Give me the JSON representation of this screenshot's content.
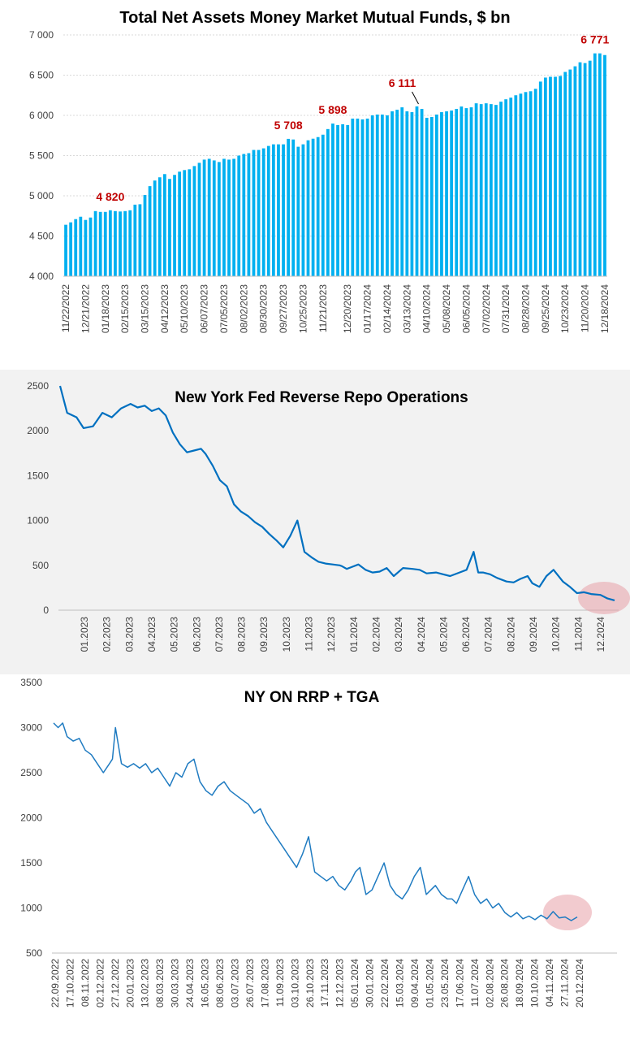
{
  "chart_data": [
    {
      "type": "bar",
      "title": "Total Net Assets Money Market Mutual Funds, $ bn",
      "ylim": [
        4000,
        7000
      ],
      "yticks": [
        "4 000",
        "4 500",
        "5 000",
        "5 500",
        "6 000",
        "6 500",
        "7 000"
      ],
      "grid": true,
      "color": "#00b0f0",
      "x_tick_labels": [
        "11/22/2022",
        "12/21/2022",
        "01/18/2023",
        "02/15/2023",
        "03/15/2023",
        "04/12/2023",
        "05/10/2023",
        "06/07/2023",
        "07/05/2023",
        "08/02/2023",
        "08/30/2023",
        "09/27/2023",
        "10/25/2023",
        "11/21/2023",
        "12/20/2023",
        "01/17/2024",
        "02/14/2024",
        "03/13/2024",
        "04/10/2024",
        "05/08/2024",
        "06/05/2024",
        "07/02/2024",
        "07/31/2024",
        "08/28/2024",
        "09/25/2024",
        "10/23/2024",
        "11/20/2024",
        "12/18/2024"
      ],
      "values": [
        4640,
        4670,
        4710,
        4740,
        4700,
        4730,
        4810,
        4800,
        4800,
        4820,
        4810,
        4805,
        4810,
        4820,
        4890,
        4895,
        5010,
        5120,
        5190,
        5230,
        5270,
        5210,
        5260,
        5300,
        5320,
        5330,
        5370,
        5410,
        5450,
        5460,
        5440,
        5420,
        5460,
        5450,
        5460,
        5500,
        5520,
        5530,
        5570,
        5570,
        5590,
        5620,
        5640,
        5640,
        5640,
        5708,
        5700,
        5610,
        5640,
        5690,
        5710,
        5730,
        5760,
        5830,
        5898,
        5880,
        5890,
        5880,
        5960,
        5960,
        5950,
        5960,
        6000,
        6010,
        6010,
        6000,
        6050,
        6070,
        6100,
        6050,
        6040,
        6111,
        6080,
        5970,
        5980,
        6010,
        6040,
        6050,
        6060,
        6080,
        6110,
        6090,
        6100,
        6150,
        6140,
        6150,
        6140,
        6130,
        6170,
        6200,
        6220,
        6250,
        6270,
        6290,
        6300,
        6330,
        6420,
        6470,
        6480,
        6480,
        6490,
        6540,
        6570,
        6610,
        6660,
        6650,
        6680,
        6771,
        6771,
        6750
      ],
      "annotations": [
        {
          "label": "4 820",
          "index": 9
        },
        {
          "label": "5 708",
          "index": 45
        },
        {
          "label": "5 898",
          "index": 54
        },
        {
          "label": "6 111",
          "index": 71
        },
        {
          "label": "6 771",
          "index": 107
        }
      ]
    },
    {
      "type": "line",
      "title": "New York Fed Reverse Repo Operations",
      "ylim": [
        0,
        2500
      ],
      "yticks": [
        "0",
        "500",
        "1000",
        "1500",
        "2000",
        "2500"
      ],
      "x_tick_labels": [
        "01.2023",
        "02.2023",
        "03.2023",
        "04.2023",
        "05.2023",
        "06.2023",
        "07.2023",
        "08.2023",
        "09.2023",
        "10.2023",
        "11.2023",
        "12.2023",
        "01.2024",
        "02.2024",
        "03.2024",
        "04.2024",
        "05.2024",
        "06.2024",
        "07.2024",
        "08.2024",
        "09.2024",
        "10.2024",
        "11.2024",
        "12.2024"
      ],
      "x": [
        0.0,
        0.3,
        0.7,
        1.0,
        1.4,
        1.8,
        2.2,
        2.6,
        3.0,
        3.3,
        3.6,
        3.9,
        4.2,
        4.5,
        4.8,
        5.1,
        5.4,
        5.7,
        6.0,
        6.2,
        6.5,
        6.8,
        7.1,
        7.4,
        7.7,
        8.0,
        8.3,
        8.6,
        8.9,
        9.2,
        9.5,
        9.8,
        10.1,
        10.4,
        10.7,
        11.0,
        11.3,
        11.6,
        11.9,
        12.0,
        12.2,
        12.4,
        12.7,
        13.0,
        13.3,
        13.6,
        13.9,
        14.2,
        14.6,
        15.0,
        15.3,
        15.6,
        16.0,
        16.3,
        16.6,
        17.0,
        17.3,
        17.6,
        17.8,
        18.0,
        18.3,
        18.6,
        19.0,
        19.3,
        19.6,
        19.9,
        20.1,
        20.4,
        20.7,
        21.0,
        21.4,
        21.7,
        22.0,
        22.3,
        22.6,
        23.0,
        23.3,
        23.6
      ],
      "values": [
        2500,
        2200,
        2150,
        2030,
        2050,
        2200,
        2150,
        2250,
        2300,
        2260,
        2280,
        2220,
        2250,
        2170,
        1980,
        1850,
        1760,
        1780,
        1800,
        1740,
        1610,
        1450,
        1380,
        1180,
        1100,
        1050,
        980,
        930,
        850,
        780,
        700,
        830,
        1000,
        650,
        590,
        540,
        520,
        510,
        500,
        490,
        460,
        480,
        510,
        450,
        420,
        430,
        470,
        380,
        470,
        460,
        450,
        410,
        420,
        400,
        380,
        420,
        450,
        650,
        420,
        420,
        400,
        360,
        320,
        310,
        350,
        380,
        300,
        260,
        380,
        450,
        320,
        260,
        190,
        200,
        180,
        170,
        130,
        110
      ],
      "color": "#0070c0",
      "background": "#f2f2f2"
    },
    {
      "type": "line",
      "title": "NY ON RRP + TGA",
      "ylim": [
        500,
        3500
      ],
      "yticks": [
        "500",
        "1000",
        "1500",
        "2000",
        "2500",
        "3000",
        "3500"
      ],
      "x_tick_labels": [
        "22.09.2022",
        "17.10.2022",
        "08.11.2022",
        "02.12.2022",
        "27.12.2022",
        "20.01.2023",
        "13.02.2023",
        "08.03.2023",
        "30.03.2023",
        "24.04.2023",
        "16.05.2023",
        "08.06.2023",
        "03.07.2023",
        "26.07.2023",
        "17.08.2023",
        "11.09.2023",
        "03.10.2023",
        "26.10.2023",
        "17.11.2023",
        "12.12.2023",
        "05.01.2024",
        "30.01.2024",
        "22.02.2024",
        "15.03.2024",
        "09.04.2024",
        "01.05.2024",
        "23.05.2024",
        "17.06.2024",
        "11.07.2024",
        "02.08.2024",
        "26.08.2024",
        "18.09.2024",
        "10.10.2024",
        "04.11.2024",
        "27.11.2024",
        "20.12.2024"
      ],
      "x": [
        0.0,
        0.3,
        0.6,
        0.9,
        1.3,
        1.7,
        2.1,
        2.5,
        2.9,
        3.3,
        3.7,
        3.9,
        4.1,
        4.5,
        4.9,
        5.3,
        5.7,
        6.1,
        6.5,
        6.9,
        7.3,
        7.7,
        8.1,
        8.5,
        8.9,
        9.3,
        9.7,
        10.1,
        10.5,
        10.9,
        11.3,
        11.7,
        12.1,
        12.5,
        12.9,
        13.3,
        13.7,
        14.1,
        14.5,
        14.9,
        15.3,
        15.7,
        16.1,
        16.5,
        16.9,
        17.3,
        17.7,
        18.1,
        18.5,
        18.9,
        19.3,
        19.7,
        20.0,
        20.3,
        20.7,
        21.1,
        21.5,
        21.9,
        22.3,
        22.7,
        23.1,
        23.5,
        23.9,
        24.3,
        24.7,
        25.0,
        25.3,
        25.7,
        26.1,
        26.4,
        26.7,
        27.1,
        27.5,
        27.9,
        28.3,
        28.7,
        29.1,
        29.5,
        29.9,
        30.3,
        30.7,
        31.1,
        31.5,
        31.9,
        32.3,
        32.7,
        33.1,
        33.5,
        33.9,
        34.3,
        34.7
      ],
      "values": [
        3050,
        3000,
        3050,
        2900,
        2850,
        2880,
        2750,
        2700,
        2600,
        2500,
        2600,
        2650,
        3000,
        2600,
        2560,
        2600,
        2550,
        2600,
        2500,
        2550,
        2450,
        2350,
        2500,
        2450,
        2600,
        2650,
        2400,
        2300,
        2250,
        2350,
        2400,
        2300,
        2250,
        2200,
        2150,
        2050,
        2100,
        1950,
        1850,
        1750,
        1650,
        1550,
        1450,
        1600,
        1790,
        1400,
        1350,
        1300,
        1350,
        1250,
        1200,
        1300,
        1400,
        1450,
        1150,
        1200,
        1350,
        1500,
        1250,
        1150,
        1100,
        1200,
        1350,
        1450,
        1150,
        1200,
        1250,
        1150,
        1100,
        1100,
        1050,
        1200,
        1350,
        1150,
        1050,
        1100,
        1000,
        1050,
        950,
        900,
        950,
        880,
        910,
        870,
        920,
        880,
        960,
        890,
        900,
        860,
        900
      ],
      "color": "#1f7bc1",
      "annotation": "highlight-ellipse"
    }
  ]
}
